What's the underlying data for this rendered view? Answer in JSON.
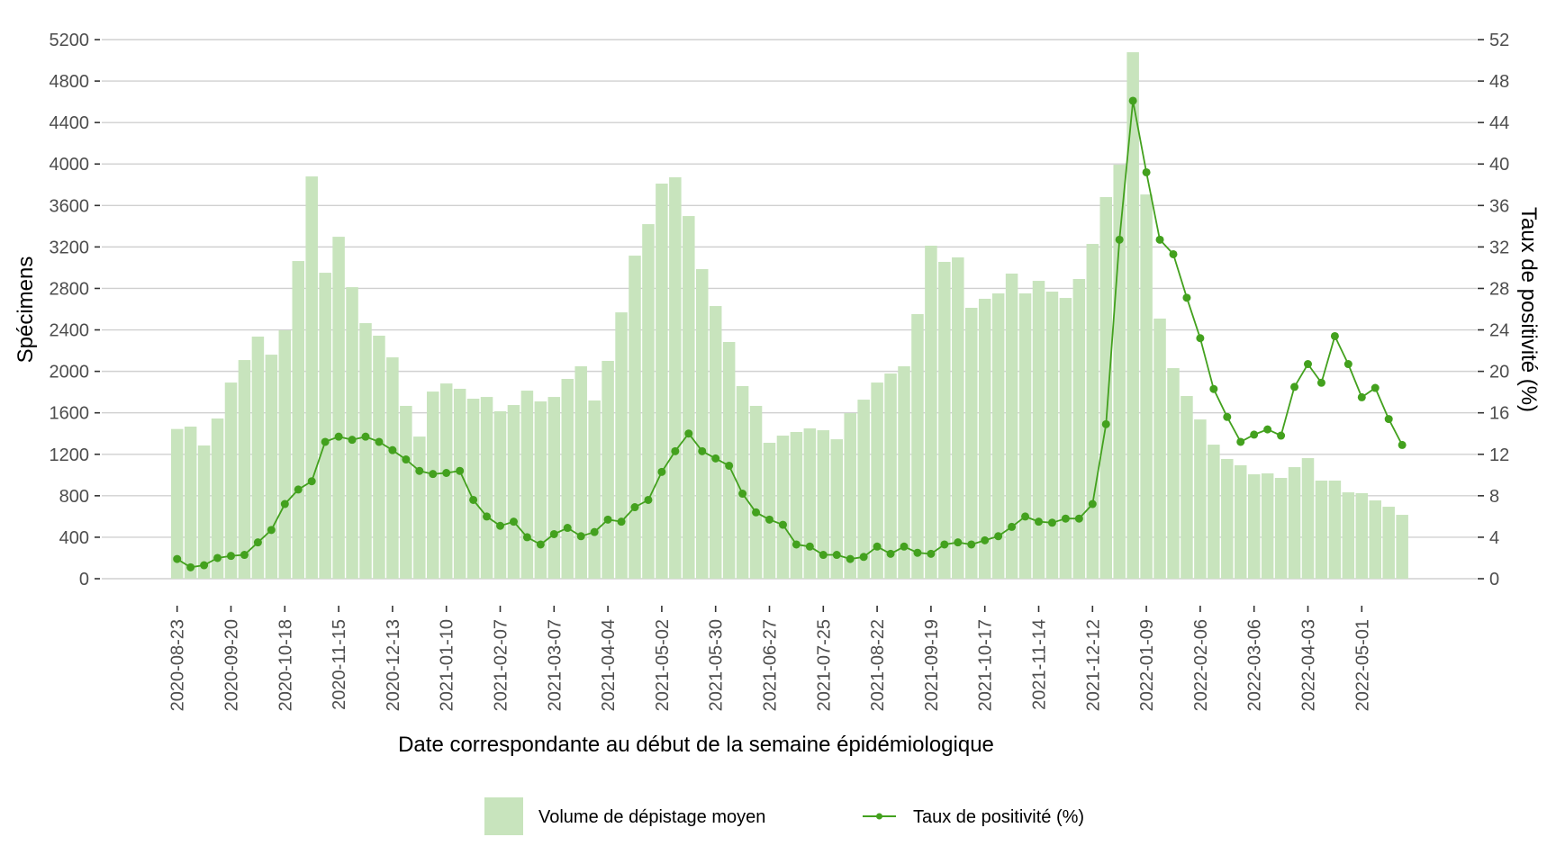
{
  "chart_data": {
    "type": "bar",
    "title": "",
    "xlabel": "Date correspondante au début de la semaine épidémiologique",
    "ylabel": "Spécimens",
    "ylabel_right": "Taux de positivité (%)",
    "ylim": [
      0,
      5200
    ],
    "ylim_right": [
      0,
      52
    ],
    "yticks": [
      0,
      400,
      800,
      1200,
      1600,
      2000,
      2400,
      2800,
      3200,
      3600,
      4000,
      4400,
      4800,
      5200
    ],
    "yticks_right": [
      0,
      4,
      8,
      12,
      16,
      20,
      24,
      28,
      32,
      36,
      40,
      44,
      48,
      52
    ],
    "grid": true,
    "legend_position": "bottom",
    "colors": {
      "bars": "#c8e4bd",
      "line": "#43a11e"
    },
    "categories": [
      "2020-08-23",
      "2020-08-30",
      "2020-09-06",
      "2020-09-13",
      "2020-09-20",
      "2020-09-27",
      "2020-10-04",
      "2020-10-11",
      "2020-10-18",
      "2020-10-25",
      "2020-11-01",
      "2020-11-08",
      "2020-11-15",
      "2020-11-22",
      "2020-11-29",
      "2020-12-06",
      "2020-12-13",
      "2020-12-20",
      "2020-12-27",
      "2021-01-03",
      "2021-01-10",
      "2021-01-17",
      "2021-01-24",
      "2021-01-31",
      "2021-02-07",
      "2021-02-14",
      "2021-02-21",
      "2021-02-28",
      "2021-03-07",
      "2021-03-14",
      "2021-03-21",
      "2021-03-28",
      "2021-04-04",
      "2021-04-11",
      "2021-04-18",
      "2021-04-25",
      "2021-05-02",
      "2021-05-09",
      "2021-05-16",
      "2021-05-23",
      "2021-05-30",
      "2021-06-06",
      "2021-06-13",
      "2021-06-20",
      "2021-06-27",
      "2021-07-04",
      "2021-07-11",
      "2021-07-18",
      "2021-07-25",
      "2021-08-01",
      "2021-08-08",
      "2021-08-15",
      "2021-08-22",
      "2021-08-29",
      "2021-09-05",
      "2021-09-12",
      "2021-09-19",
      "2021-09-26",
      "2021-10-03",
      "2021-10-10",
      "2021-10-17",
      "2021-10-24",
      "2021-10-31",
      "2021-11-07",
      "2021-11-14",
      "2021-11-21",
      "2021-11-28",
      "2021-12-05",
      "2021-12-12",
      "2021-12-19",
      "2021-12-26",
      "2022-01-02",
      "2022-01-09",
      "2022-01-16",
      "2022-01-23",
      "2022-01-30",
      "2022-02-06",
      "2022-02-13",
      "2022-02-20",
      "2022-02-27",
      "2022-03-06",
      "2022-03-13",
      "2022-03-20",
      "2022-03-27",
      "2022-04-03",
      "2022-04-10",
      "2022-04-17",
      "2022-04-24",
      "2022-05-01",
      "2022-05-08",
      "2022-05-15",
      "2022-05-22"
    ],
    "xtick_labels": [
      "2020-08-23",
      "2020-09-20",
      "2020-10-18",
      "2020-11-15",
      "2020-12-13",
      "2021-01-10",
      "2021-02-07",
      "2021-03-07",
      "2021-04-04",
      "2021-05-02",
      "2021-05-30",
      "2021-06-27",
      "2021-07-25",
      "2021-08-22",
      "2021-09-19",
      "2021-10-17",
      "2021-11-14",
      "2021-12-12",
      "2022-01-09",
      "2022-02-06",
      "2022-03-06",
      "2022-04-03",
      "2022-05-01"
    ],
    "series": [
      {
        "name": "Volume de dépistage moyen",
        "type": "bar",
        "axis": "left",
        "values": [
          1444,
          1467,
          1285,
          1545,
          1892,
          2109,
          2335,
          2161,
          2396,
          3064,
          3880,
          2951,
          3298,
          2812,
          2465,
          2344,
          2135,
          1667,
          1371,
          1805,
          1883,
          1832,
          1736,
          1753,
          1615,
          1675,
          1814,
          1710,
          1753,
          1927,
          2049,
          1719,
          2101,
          2569,
          3116,
          3420,
          3811,
          3872,
          3498,
          2986,
          2630,
          2283,
          1858,
          1667,
          1311,
          1380,
          1415,
          1450,
          1432,
          1345,
          1597,
          1727,
          1892,
          1979,
          2049,
          2552,
          3212,
          3056,
          3099,
          2613,
          2700,
          2752,
          2943,
          2752,
          2873,
          2769,
          2708,
          2891,
          3229,
          3681,
          3993,
          5078,
          3706,
          2509,
          2031,
          1762,
          1536,
          1293,
          1155,
          1094,
          1007,
          1016,
          972,
          1076,
          1163,
          946,
          946,
          833,
          825,
          755,
          694,
          616
        ]
      },
      {
        "name": "Taux de positivité (%)",
        "type": "line",
        "axis": "right",
        "values": [
          1.9,
          1.1,
          1.3,
          2.0,
          2.2,
          2.3,
          3.5,
          4.7,
          7.2,
          8.6,
          9.4,
          13.2,
          13.7,
          13.4,
          13.7,
          13.2,
          12.4,
          11.5,
          10.4,
          10.1,
          10.2,
          10.4,
          7.6,
          6.0,
          5.1,
          5.5,
          4.0,
          3.3,
          4.3,
          4.9,
          4.1,
          4.5,
          5.7,
          5.5,
          6.9,
          7.6,
          10.3,
          12.3,
          14.0,
          12.3,
          11.6,
          10.9,
          8.2,
          6.4,
          5.7,
          5.2,
          3.3,
          3.1,
          2.3,
          2.3,
          1.9,
          2.1,
          3.1,
          2.4,
          3.1,
          2.5,
          2.4,
          3.3,
          3.5,
          3.3,
          3.7,
          4.1,
          5.0,
          6.0,
          5.5,
          5.4,
          5.8,
          5.8,
          7.2,
          14.9,
          32.7,
          46.1,
          39.2,
          32.7,
          31.3,
          27.1,
          23.2,
          18.3,
          15.6,
          13.2,
          13.9,
          14.4,
          13.8,
          18.5,
          20.7,
          18.9,
          23.4,
          20.7,
          17.5,
          18.4,
          15.4,
          12.9
        ]
      }
    ],
    "legend": [
      {
        "label": "Volume de dépistage moyen",
        "symbol": "square"
      },
      {
        "label": "Taux de positivité (%)",
        "symbol": "line-point"
      }
    ]
  }
}
